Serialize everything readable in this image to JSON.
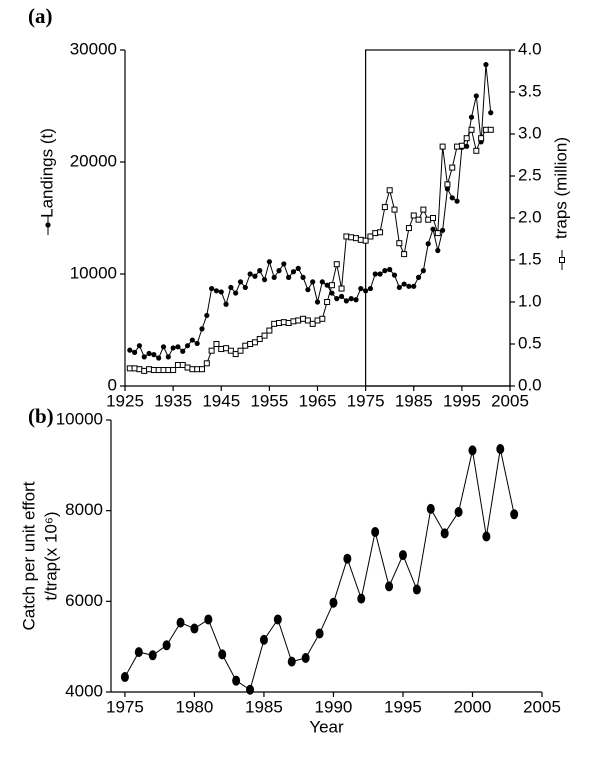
{
  "chart_data": [
    {
      "type": "line",
      "panel_label": "(a)",
      "y_label": "Landings (t)",
      "y2_label": "traps (million)",
      "x": [
        1926,
        1927,
        1928,
        1929,
        1930,
        1931,
        1932,
        1933,
        1934,
        1935,
        1936,
        1937,
        1938,
        1939,
        1940,
        1941,
        1942,
        1943,
        1944,
        1945,
        1946,
        1947,
        1948,
        1949,
        1950,
        1951,
        1952,
        1953,
        1954,
        1955,
        1956,
        1957,
        1958,
        1959,
        1960,
        1961,
        1962,
        1963,
        1964,
        1965,
        1966,
        1967,
        1968,
        1969,
        1970,
        1971,
        1972,
        1973,
        1974,
        1975,
        1976,
        1977,
        1978,
        1979,
        1980,
        1981,
        1982,
        1983,
        1984,
        1985,
        1986,
        1987,
        1988,
        1989,
        1990,
        1991,
        1992,
        1993,
        1994,
        1995,
        1996,
        1997,
        1998,
        1999,
        2000,
        2001
      ],
      "series": [
        {
          "color": "#000000",
          "marker": "circle",
          "values": [
            3200,
            3000,
            3600,
            2600,
            2900,
            2800,
            2500,
            3500,
            2600,
            3400,
            3500,
            3100,
            3600,
            4100,
            3800,
            5100,
            6300,
            8700,
            8500,
            8400,
            7300,
            8800,
            8300,
            9300,
            8800,
            10000,
            9800,
            10300,
            9500,
            11100,
            9700,
            10300,
            10900,
            9700,
            10200,
            10500,
            9700,
            8600,
            9300,
            7500,
            9300,
            9000,
            8300,
            7800,
            8000,
            7600,
            7800,
            7700,
            8700,
            8500,
            8700,
            10000,
            10000,
            10300,
            10400,
            9900,
            8800,
            9100,
            8900,
            8900,
            9700,
            10300,
            12700,
            14000,
            12100,
            13900,
            17600,
            16800,
            16500,
            21300,
            21400,
            24000,
            25900,
            21800,
            28700,
            24400
          ]
        },
        {
          "color": "#000000",
          "marker": "square",
          "axis": "y2",
          "values": [
            0.21,
            0.21,
            0.2,
            0.18,
            0.2,
            0.19,
            0.19,
            0.19,
            0.19,
            0.19,
            0.25,
            0.25,
            0.22,
            0.2,
            0.2,
            0.2,
            0.27,
            0.42,
            0.5,
            0.44,
            0.45,
            0.42,
            0.38,
            0.42,
            0.48,
            0.5,
            0.52,
            0.56,
            0.6,
            0.66,
            0.74,
            0.75,
            0.76,
            0.75,
            0.77,
            0.78,
            0.8,
            0.78,
            0.74,
            0.78,
            0.8,
            1.0,
            1.2,
            1.45,
            1.16,
            1.78,
            1.77,
            1.76,
            1.74,
            1.73,
            1.78,
            1.82,
            1.83,
            2.13,
            2.33,
            2.1,
            1.7,
            1.57,
            1.88,
            2.03,
            1.98,
            2.1,
            1.98,
            2.0,
            1.82,
            2.85,
            2.4,
            2.6,
            2.85,
            2.86,
            2.95,
            3.05,
            2.8,
            2.95,
            3.05,
            3.05
          ]
        }
      ],
      "xlim": [
        1925,
        2005
      ],
      "xticks": [
        1925,
        1935,
        1945,
        1955,
        1965,
        1975,
        1985,
        1995,
        2005
      ],
      "ylim": [
        0,
        30000
      ],
      "yticks": [
        0,
        10000,
        20000,
        30000
      ],
      "y2lim": [
        0,
        4
      ],
      "y2ticks": [
        {
          "value": 0,
          "label": "0.0"
        },
        0.5,
        {
          "value": 1,
          "label": "1.0"
        },
        1.5,
        {
          "value": 2,
          "label": "2.0"
        },
        2.5,
        {
          "value": 3,
          "label": "3.0"
        },
        3.5,
        {
          "value": 4,
          "label": "4.0"
        }
      ],
      "highlight_x": [
        1975,
        2005
      ]
    },
    {
      "type": "line",
      "panel_label": "(b)",
      "y_label": [
        "Catch per unit effort",
        "t/trap(x 10⁶)"
      ],
      "x_label": "Year",
      "x": [
        1975,
        1976,
        1977,
        1978,
        1979,
        1980,
        1981,
        1982,
        1983,
        1984,
        1985,
        1986,
        1987,
        1988,
        1989,
        1990,
        1991,
        1992,
        1993,
        1994,
        1995,
        1996,
        1997,
        1998,
        1999,
        2000,
        2001,
        2002,
        2003
      ],
      "series": [
        {
          "color": "#000000",
          "marker": "ellipse",
          "values": [
            4330,
            4880,
            4810,
            5030,
            5530,
            5400,
            5600,
            4830,
            4250,
            4050,
            5150,
            5600,
            4670,
            4750,
            5290,
            5970,
            6940,
            6060,
            7530,
            6330,
            7020,
            6260,
            8040,
            7500,
            7970,
            9330,
            7430,
            9360,
            7920
          ]
        }
      ],
      "xlim": [
        1974,
        2005
      ],
      "xticks": [
        1975,
        1980,
        1985,
        1990,
        1995,
        2000,
        2005
      ],
      "ylim": [
        4000,
        10000
      ],
      "yticks": [
        4000,
        6000,
        8000,
        10000
      ]
    }
  ]
}
